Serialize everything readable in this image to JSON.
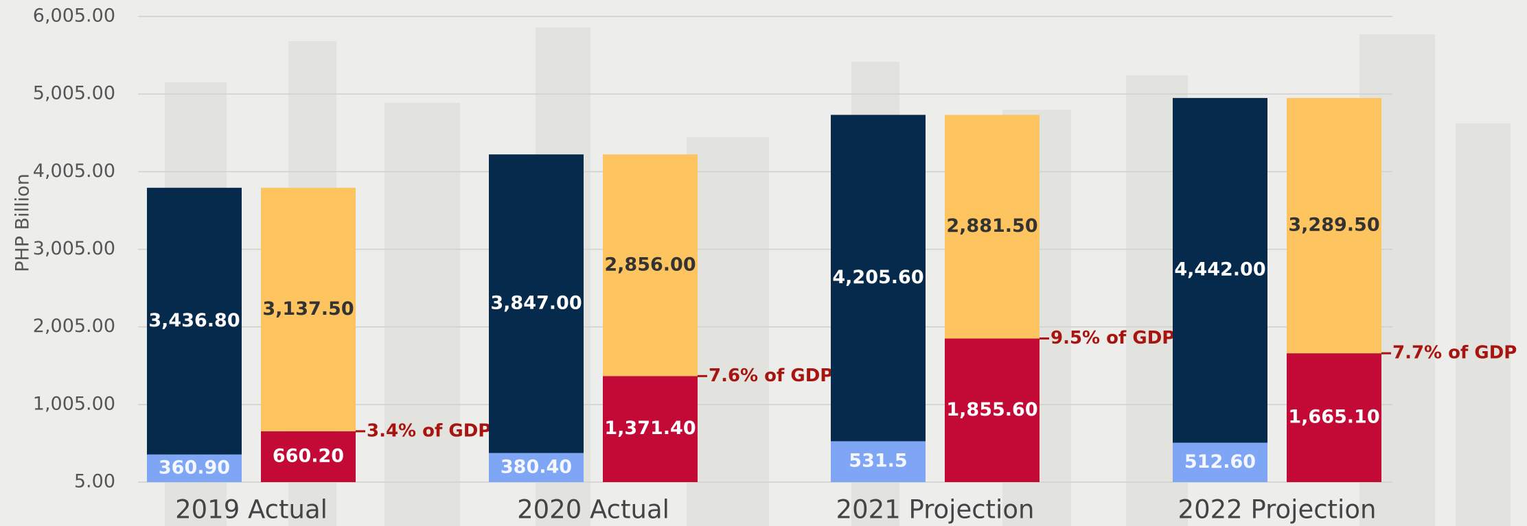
{
  "chart_data": {
    "type": "grouped-stacked-bar",
    "y_label": "PHP Billion",
    "categories": [
      "2019 Actual",
      "2020 Actual",
      "2021 Projection",
      "2022 Projection"
    ],
    "stacks": [
      [
        {
          "color": "#7fa6f4",
          "label_color": "#f4f7ff",
          "values": [
            360.9,
            380.4,
            531.5,
            512.6
          ],
          "value_labels": [
            "360.90",
            "380.40",
            "531.5",
            "512.60"
          ]
        },
        {
          "color": "#062a4b",
          "label_color": "#ffffff",
          "values": [
            3436.8,
            3847.0,
            4205.6,
            4442.0
          ],
          "value_labels": [
            "3,436.80",
            "3,847.00",
            "4,205.60",
            "4,442.00"
          ]
        }
      ],
      [
        {
          "color": "#c30a37",
          "label_color": "#ffffff",
          "values": [
            660.2,
            1371.4,
            1855.6,
            1665.1
          ],
          "value_labels": [
            "660.20",
            "1,371.40",
            "1,855.60",
            "1,665.10"
          ]
        },
        {
          "color": "#fdc45f",
          "label_color": "#333333",
          "values": [
            3137.5,
            2856.0,
            2881.5,
            3289.5
          ],
          "value_labels": [
            "3,137.50",
            "2,856.00",
            "2,881.50",
            "3,289.50"
          ]
        }
      ]
    ],
    "annotations": [
      "3.4% of GDP",
      "7.6% of GDP",
      "9.5% of GDP",
      "7.7% of GDP"
    ],
    "annotation_color": "#a8140f",
    "ylim": [
      5,
      6005
    ],
    "yticks": [
      {
        "value": 5,
        "label": "5.00"
      },
      {
        "value": 1005,
        "label": "1,005.00"
      },
      {
        "value": 2005,
        "label": "2,005.00"
      },
      {
        "value": 3005,
        "label": "3,005.00"
      },
      {
        "value": 4005,
        "label": "4,005.00"
      },
      {
        "value": 5005,
        "label": "5,005.00"
      },
      {
        "value": 6005,
        "label": "6,005.00"
      }
    ],
    "grid": true
  }
}
